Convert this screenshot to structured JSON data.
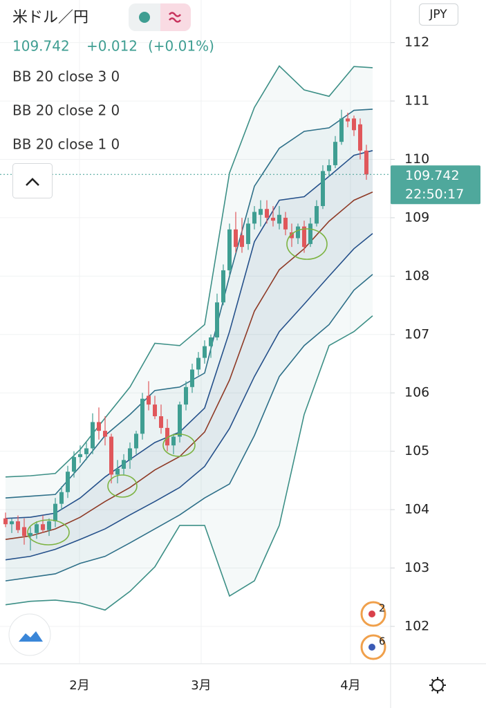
{
  "chart_data": {
    "type": "candlestick",
    "title": "米ドル／円",
    "last_price": 109.742,
    "change": "+0.012",
    "change_pct": "(+0.01%)",
    "currency": "JPY",
    "countdown": "22:50:17",
    "up_color": "#3f9e92",
    "down_color": "#e0575b",
    "x": [
      0,
      1,
      2,
      3,
      4,
      5,
      6,
      7,
      8,
      9,
      10,
      11,
      12,
      13,
      14,
      15,
      16,
      17,
      18,
      19,
      20,
      21,
      22,
      23,
      24,
      25,
      26,
      27,
      28,
      29,
      30,
      31,
      32,
      33,
      34,
      35,
      36,
      37,
      38,
      39,
      40,
      41,
      42,
      43,
      44,
      45,
      46,
      47,
      48,
      49,
      50,
      51,
      52,
      53,
      54,
      55,
      56,
      57,
      58
    ],
    "open": [
      103.85,
      103.75,
      103.8,
      103.7,
      103.55,
      103.6,
      103.75,
      103.65,
      103.8,
      104.1,
      104.3,
      104.65,
      104.9,
      104.95,
      105.05,
      105.5,
      105.35,
      105.25,
      104.6,
      104.7,
      104.85,
      105.05,
      105.3,
      105.95,
      105.8,
      105.6,
      105.4,
      105.1,
      105.25,
      105.8,
      106.1,
      106.4,
      106.6,
      106.8,
      106.95,
      107.55,
      108.1,
      108.8,
      108.7,
      108.55,
      108.9,
      109.05,
      109.15,
      109.0,
      108.9,
      109.0,
      108.75,
      108.65,
      108.85,
      108.55,
      108.9,
      109.2,
      109.8,
      109.9,
      110.3,
      110.7,
      110.7,
      110.6,
      110.15
    ],
    "high": [
      103.95,
      103.85,
      103.9,
      103.85,
      103.7,
      103.8,
      103.9,
      103.85,
      104.2,
      104.4,
      104.75,
      105.0,
      105.1,
      105.15,
      105.65,
      105.75,
      105.6,
      105.3,
      104.85,
      104.95,
      105.15,
      105.35,
      106.0,
      106.2,
      105.95,
      105.8,
      105.55,
      105.3,
      105.85,
      106.2,
      106.5,
      106.7,
      106.9,
      107.0,
      107.7,
      108.2,
      108.9,
      109.1,
      109.0,
      109.0,
      109.2,
      109.3,
      109.3,
      109.2,
      109.2,
      109.1,
      108.9,
      108.9,
      108.95,
      109.0,
      109.3,
      109.9,
      110.0,
      110.4,
      110.85,
      110.8,
      110.75,
      110.7,
      110.25
    ],
    "low": [
      103.7,
      103.6,
      103.6,
      103.4,
      103.3,
      103.5,
      103.6,
      103.55,
      103.7,
      104.0,
      104.2,
      104.55,
      104.8,
      104.85,
      104.95,
      105.2,
      105.1,
      104.45,
      104.45,
      104.6,
      104.7,
      104.95,
      105.2,
      105.7,
      105.55,
      105.3,
      105.0,
      104.95,
      105.15,
      105.7,
      106.0,
      106.3,
      106.5,
      106.6,
      106.9,
      107.5,
      108.0,
      108.4,
      108.4,
      108.45,
      108.8,
      108.85,
      108.9,
      108.85,
      108.8,
      108.7,
      108.5,
      108.55,
      108.4,
      108.5,
      108.85,
      109.15,
      109.7,
      109.85,
      110.25,
      110.55,
      110.4,
      110.0,
      109.65
    ],
    "close": [
      103.75,
      103.8,
      103.65,
      103.55,
      103.6,
      103.75,
      103.65,
      103.8,
      104.1,
      104.3,
      104.65,
      104.9,
      104.95,
      105.05,
      105.5,
      105.35,
      105.25,
      104.6,
      104.7,
      104.85,
      105.05,
      105.3,
      105.9,
      105.8,
      105.6,
      105.4,
      105.1,
      105.25,
      105.8,
      106.1,
      106.4,
      106.6,
      106.8,
      106.95,
      107.55,
      108.1,
      108.8,
      108.5,
      108.5,
      108.9,
      109.1,
      109.15,
      109.0,
      108.95,
      109.05,
      108.8,
      108.65,
      108.85,
      108.5,
      108.9,
      109.2,
      109.8,
      109.9,
      110.3,
      110.7,
      110.65,
      110.5,
      110.15,
      109.742
    ],
    "band_x": [
      0,
      4,
      8,
      12,
      16,
      20,
      24,
      28,
      32,
      36,
      40,
      44,
      48,
      52,
      56,
      59
    ],
    "bands": [
      {
        "name": "BB 20 close 3 0",
        "color": "#3c8f86",
        "upper": [
          104.56,
          104.58,
          104.62,
          105.03,
          105.57,
          106.1,
          106.85,
          106.81,
          107.17,
          109.77,
          110.89,
          111.6,
          111.19,
          111.08,
          111.59,
          111.57
        ],
        "lower": [
          102.37,
          102.43,
          102.45,
          102.4,
          102.28,
          102.6,
          103.02,
          103.73,
          103.73,
          102.52,
          102.78,
          103.73,
          105.63,
          106.81,
          107.05,
          107.32
        ]
      },
      {
        "name": "BB 20 close 2 0",
        "color": "#2d6f88",
        "upper": [
          104.2,
          104.23,
          104.26,
          104.74,
          105.27,
          105.63,
          106.04,
          106.1,
          106.34,
          108.0,
          109.54,
          110.19,
          110.48,
          110.54,
          110.84,
          110.86
        ],
        "lower": [
          102.78,
          102.84,
          102.9,
          103.08,
          103.2,
          103.43,
          103.67,
          103.91,
          104.2,
          104.44,
          105.27,
          106.28,
          106.81,
          107.17,
          107.76,
          108.03
        ]
      },
      {
        "name": "BB 20 close 1 0",
        "color": "#24508a",
        "upper": [
          103.85,
          103.87,
          103.94,
          104.2,
          104.56,
          104.86,
          105.15,
          105.33,
          105.74,
          107.05,
          108.59,
          109.3,
          109.36,
          109.71,
          110.07,
          110.15
        ],
        "lower": [
          103.14,
          103.2,
          103.32,
          103.49,
          103.67,
          103.91,
          104.14,
          104.38,
          104.74,
          105.39,
          106.28,
          107.05,
          107.52,
          108.0,
          108.47,
          108.73
        ]
      }
    ],
    "basis": {
      "color": "#8e3a26",
      "values": [
        103.49,
        103.55,
        103.67,
        103.87,
        104.14,
        104.38,
        104.68,
        104.91,
        105.33,
        106.22,
        107.4,
        108.11,
        108.47,
        108.94,
        109.3,
        109.44
      ]
    },
    "xlim": [
      -0.89,
      61.89
    ],
    "xticks": [
      {
        "value": 11.89,
        "label": "2月"
      },
      {
        "value": 31.44,
        "label": "3月"
      },
      {
        "value": 55.44,
        "label": "4月"
      }
    ],
    "ylim": [
      101.36,
      112.73
    ],
    "yticks": [
      102,
      103,
      104,
      105,
      106,
      107,
      108,
      109,
      110,
      111,
      112
    ],
    "grid": true,
    "events": [
      {
        "label": "2"
      },
      {
        "label": "6"
      }
    ]
  }
}
